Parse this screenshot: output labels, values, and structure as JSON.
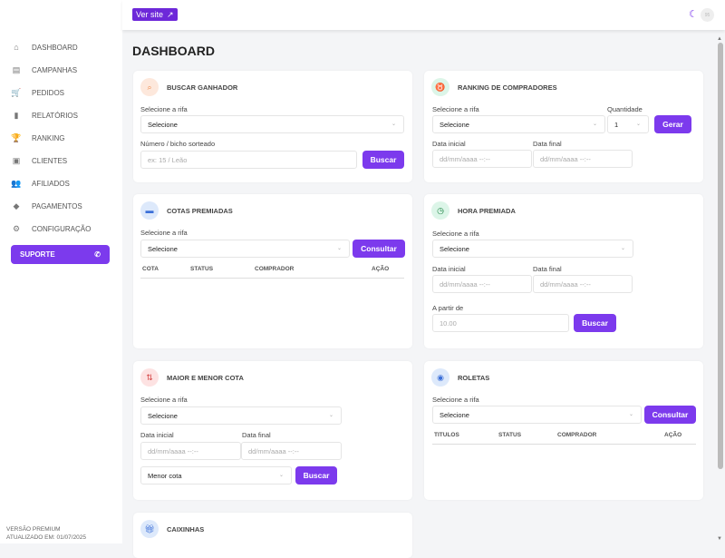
{
  "topbar": {
    "view_site": "Ver site",
    "avatar_text": "95"
  },
  "sidebar": {
    "items": [
      {
        "label": "DASHBOARD",
        "icon": "home-icon",
        "glyph": "⌂"
      },
      {
        "label": "CAMPANHAS",
        "icon": "list-icon",
        "glyph": "▤"
      },
      {
        "label": "PEDIDOS",
        "icon": "cart-icon",
        "glyph": "🛒"
      },
      {
        "label": "RELATÓRIOS",
        "icon": "chart-icon",
        "glyph": "▮"
      },
      {
        "label": "RANKING",
        "icon": "trophy-icon",
        "glyph": "🏆"
      },
      {
        "label": "CLIENTES",
        "icon": "folder-user-icon",
        "glyph": "▣"
      },
      {
        "label": "AFILIADOS",
        "icon": "users-icon",
        "glyph": "👥"
      },
      {
        "label": "PAGAMENTOS",
        "icon": "payment-icon",
        "glyph": "◆"
      },
      {
        "label": "CONFIGURAÇÃO",
        "icon": "gear-icon",
        "glyph": "⚙"
      }
    ],
    "support": "SUPORTE",
    "version": "VERSÃO PREMIUM",
    "updated": "ATUALIZADO EM: 01/07/2025"
  },
  "page": {
    "title": "DASHBOARD"
  },
  "buscar": {
    "title": "BUSCAR GANHADOR",
    "rifa_label": "Selecione a rifa",
    "rifa_value": "Selecione",
    "numero_label": "Número / bicho sorteado",
    "numero_placeholder": "ex: 15 / Leão",
    "button": "Buscar"
  },
  "ranking": {
    "title": "RANKING DE COMPRADORES",
    "rifa_label": "Selecione a rifa",
    "rifa_value": "Selecione",
    "qty_label": "Quantidade",
    "qty_value": "1",
    "button": "Gerar",
    "start_label": "Data inicial",
    "end_label": "Data final",
    "date_placeholder": "dd/mm/aaaa --:--"
  },
  "cotas": {
    "title": "COTAS PREMIADAS",
    "rifa_label": "Selecione a rifa",
    "rifa_value": "Selecione",
    "button": "Consultar",
    "columns": [
      "COTA",
      "STATUS",
      "COMPRADOR",
      "AÇÃO"
    ]
  },
  "hora": {
    "title": "HORA PREMIADA",
    "rifa_label": "Selecione a rifa",
    "rifa_value": "Selecione",
    "start_label": "Data inicial",
    "end_label": "Data final",
    "date_placeholder": "dd/mm/aaaa --:--",
    "from_label": "A partir de",
    "from_placeholder": "10.00",
    "button": "Buscar"
  },
  "maior": {
    "title": "MAIOR E MENOR COTA",
    "rifa_label": "Selecione a rifa",
    "rifa_value": "Selecione",
    "start_label": "Data inicial",
    "end_label": "Data final",
    "date_placeholder": "dd/mm/aaaa --:--",
    "type_value": "Menor cota",
    "button": "Buscar"
  },
  "roletas": {
    "title": "ROLETAS",
    "rifa_label": "Selecione a rifa",
    "rifa_value": "Selecione",
    "button": "Consultar",
    "columns": [
      "TITULOS",
      "STATUS",
      "COMPRADOR",
      "AÇÃO"
    ]
  },
  "caixinhas": {
    "title": "CAIXINHAS"
  }
}
